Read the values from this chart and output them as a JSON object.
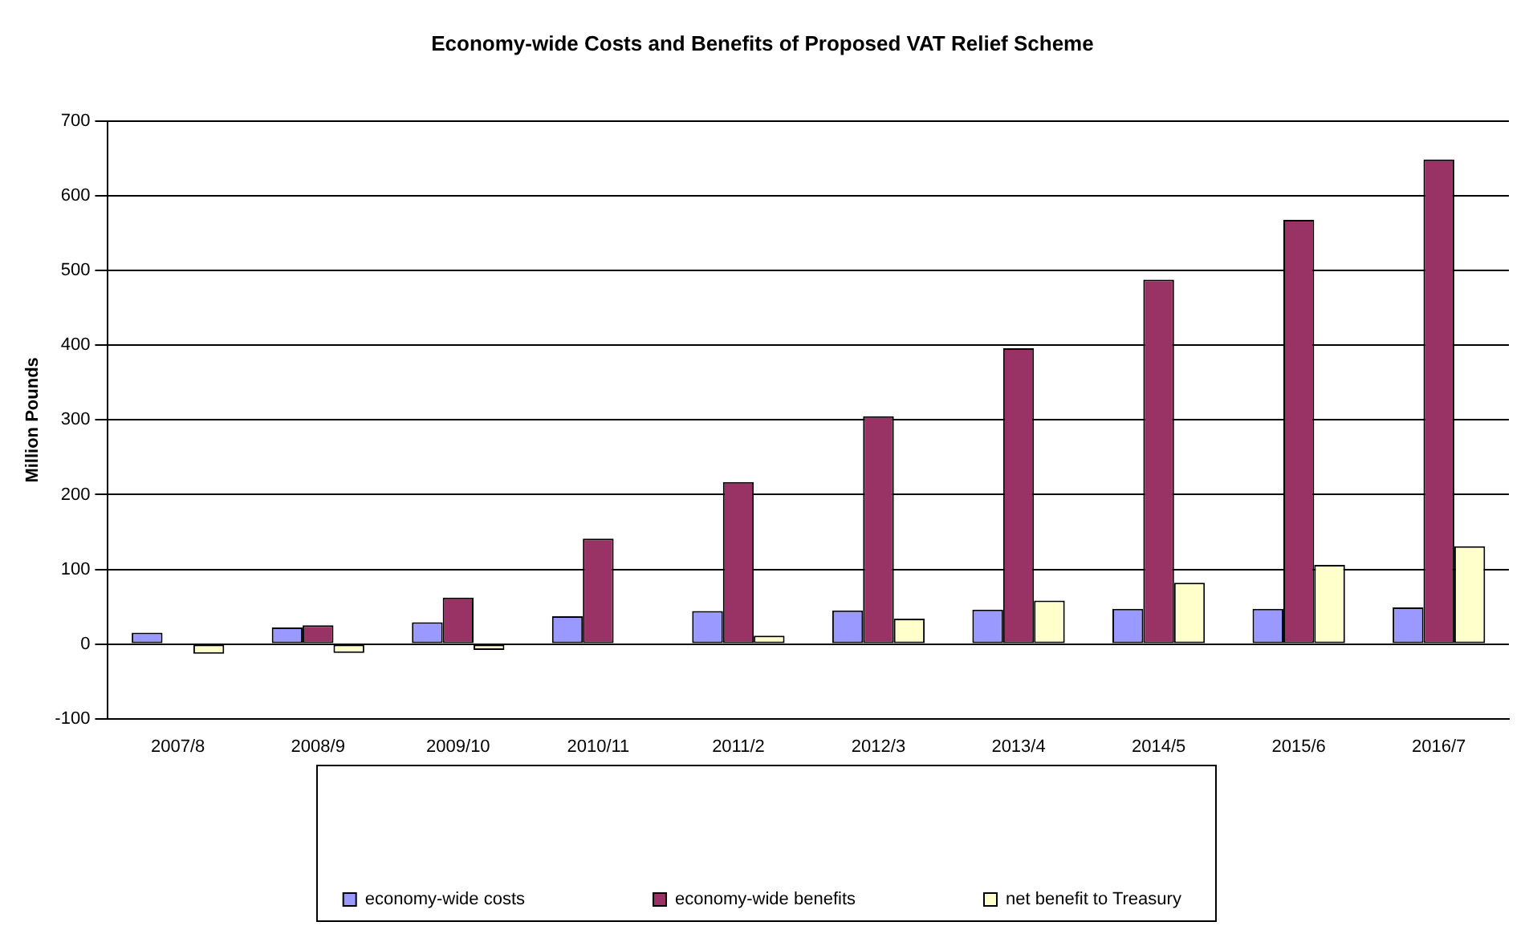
{
  "chart_data": {
    "type": "bar",
    "title": "Economy-wide Costs and Benefits of Proposed VAT Relief Scheme",
    "ylabel": "Million Pounds",
    "categories": [
      "2007/8",
      "2008/9",
      "2009/10",
      "2010/11",
      "2011/2",
      "2012/3",
      "2013/4",
      "2014/5",
      "2015/6",
      "2016/7"
    ],
    "series": [
      {
        "name": "economy-wide costs",
        "color": "#9999ff",
        "values": [
          15,
          22,
          29,
          37,
          44,
          45,
          46,
          47,
          47,
          49
        ]
      },
      {
        "name": "economy-wide benefits",
        "color": "#993366",
        "values": [
          0,
          25,
          62,
          141,
          217,
          305,
          396,
          488,
          568,
          649
        ]
      },
      {
        "name": "net benefit to Treasury",
        "color": "#ffffcc",
        "values": [
          -13,
          -12,
          -8,
          0,
          11,
          34,
          58,
          82,
          106,
          131
        ]
      }
    ],
    "ylim": [
      -100,
      700
    ],
    "yticks": [
      -100,
      0,
      100,
      200,
      300,
      400,
      500,
      600,
      700
    ],
    "grid": "y",
    "legend": "bottom"
  }
}
